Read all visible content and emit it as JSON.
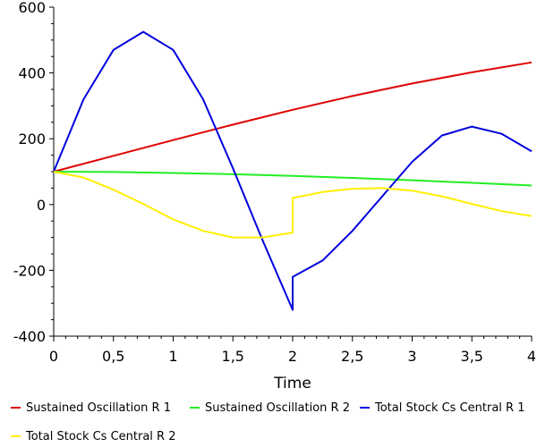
{
  "chart_data": {
    "type": "line",
    "title": "",
    "xlabel": "Time",
    "ylabel": "",
    "xlim": [
      0,
      4
    ],
    "ylim": [
      -400,
      600
    ],
    "xticks": [
      "0",
      "0,5",
      "1",
      "1,5",
      "2",
      "2,5",
      "3",
      "3,5",
      "4"
    ],
    "yticks": [
      "-400",
      "-200",
      "0",
      "200",
      "400",
      "600"
    ],
    "xtick_values": [
      0,
      0.5,
      1,
      1.5,
      2,
      2.5,
      3,
      3.5,
      4
    ],
    "ytick_values": [
      -400,
      -200,
      0,
      200,
      400,
      600
    ],
    "grid": false,
    "legend_position": "bottom",
    "series": [
      {
        "name": "Sustained Oscillation R 1",
        "color": "#e00000",
        "x": [
          0,
          0.5,
          1,
          1.5,
          2,
          2.5,
          3,
          3.5,
          4
        ],
        "y": [
          100,
          148,
          196,
          243,
          288,
          330,
          368,
          402,
          432
        ]
      },
      {
        "name": "Sustained Oscillation R 2",
        "color": "#22ee22",
        "x": [
          0,
          0.5,
          1,
          1.5,
          2,
          2.5,
          3,
          3.5,
          4
        ],
        "y": [
          100,
          99,
          96,
          92,
          87,
          81,
          74,
          66,
          58
        ]
      },
      {
        "name": "Total Stock Cs Central R 1",
        "color": "#0000dd",
        "x": [
          0,
          0.25,
          0.5,
          0.75,
          1,
          1.25,
          1.5,
          1.75,
          2,
          2,
          2.25,
          2.5,
          2.75,
          3,
          3.25,
          3.5,
          3.75,
          4
        ],
        "y": [
          100,
          320,
          470,
          525,
          470,
          320,
          110,
          -110,
          -320,
          -220,
          -170,
          -80,
          25,
          130,
          210,
          237,
          215,
          162
        ]
      },
      {
        "name": "Total Stock Cs Central R 2",
        "color": "#ffee00",
        "x": [
          0,
          0.25,
          0.5,
          0.75,
          1,
          1.25,
          1.5,
          1.75,
          2,
          2,
          2.25,
          2.5,
          2.75,
          3,
          3.25,
          3.5,
          3.75,
          4
        ],
        "y": [
          100,
          82,
          45,
          2,
          -45,
          -80,
          -100,
          -100,
          -85,
          20,
          38,
          48,
          50,
          42,
          25,
          2,
          -20,
          -35
        ]
      }
    ]
  }
}
